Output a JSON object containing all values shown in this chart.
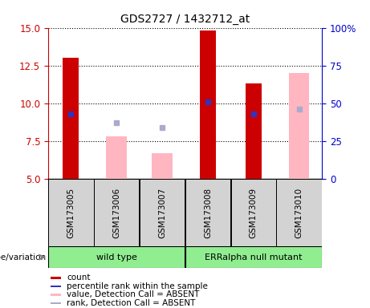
{
  "title": "GDS2727 / 1432712_at",
  "samples": [
    "GSM173005",
    "GSM173006",
    "GSM173007",
    "GSM173008",
    "GSM173009",
    "GSM173010"
  ],
  "ylim_left": [
    5,
    15
  ],
  "ylim_right": [
    0,
    100
  ],
  "yticks_left": [
    5,
    7.5,
    10,
    12.5,
    15
  ],
  "yticks_right": [
    0,
    25,
    50,
    75,
    100
  ],
  "red_bars": [
    13.0,
    null,
    null,
    14.8,
    11.3,
    null
  ],
  "pink_bars": [
    null,
    7.8,
    6.7,
    null,
    null,
    12.0
  ],
  "blue_dots": [
    9.3,
    null,
    null,
    10.1,
    9.3,
    null
  ],
  "lavender_dots": [
    null,
    8.7,
    8.4,
    null,
    null,
    9.6
  ],
  "red_color": "#CC0000",
  "pink_color": "#FFB6C1",
  "blue_color": "#3333BB",
  "lavender_color": "#AAAACC",
  "sample_bg": "#D3D3D3",
  "left_axis_color": "#CC0000",
  "right_axis_color": "#0000CC",
  "group_color": "#90EE90",
  "groups_info": [
    {
      "label": "wild type",
      "start": 0,
      "end": 2
    },
    {
      "label": "ERRalpha null mutant",
      "start": 3,
      "end": 5
    }
  ],
  "legend_items": [
    "count",
    "percentile rank within the sample",
    "value, Detection Call = ABSENT",
    "rank, Detection Call = ABSENT"
  ],
  "legend_colors": [
    "#CC0000",
    "#3333BB",
    "#FFB6C1",
    "#AAAACC"
  ]
}
